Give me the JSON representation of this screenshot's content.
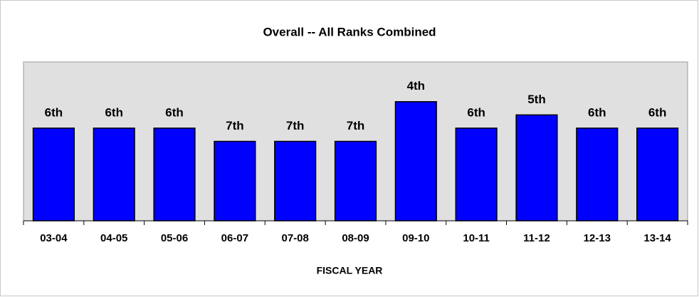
{
  "chart_data": {
    "type": "bar",
    "title": "Overall -- All Ranks Combined",
    "x_label": "FISCAL YEAR",
    "categories": [
      "03-04",
      "04-05",
      "05-06",
      "06-07",
      "07-08",
      "08-09",
      "09-10",
      "10-11",
      "11-12",
      "12-13",
      "13-14"
    ],
    "values": [
      6,
      6,
      6,
      7,
      7,
      7,
      4,
      6,
      5,
      6,
      6
    ],
    "value_labels": [
      "6th",
      "6th",
      "6th",
      "7th",
      "7th",
      "7th",
      "4th",
      "6th",
      "5th",
      "6th",
      "6th"
    ],
    "color": "#0000ff",
    "ylim": [
      13,
      1
    ]
  }
}
